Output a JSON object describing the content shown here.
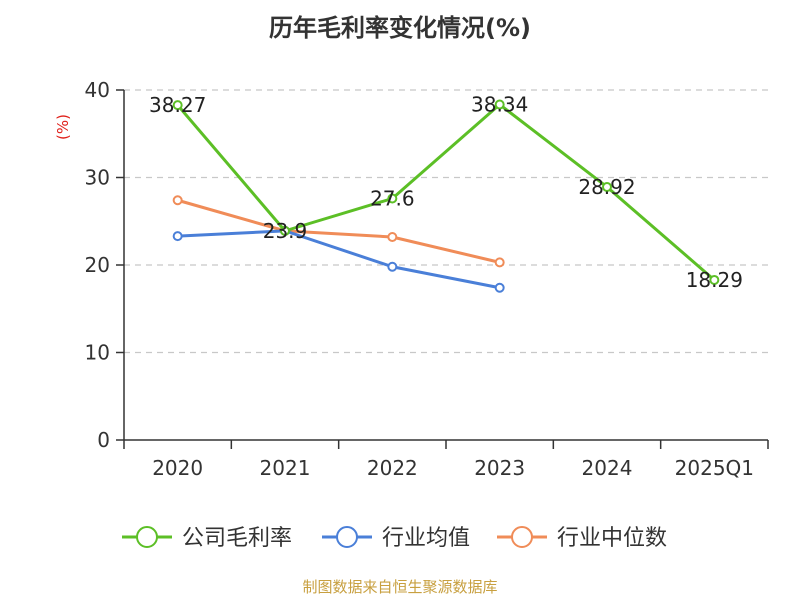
{
  "chart_data": {
    "type": "line",
    "title": "历年毛利率变化情况(%)",
    "ylabel": "(%)",
    "xlabel": "",
    "categories": [
      "2020",
      "2021",
      "2022",
      "2023",
      "2024",
      "2025Q1"
    ],
    "ylim": [
      0,
      40
    ],
    "yticks": [
      0,
      10,
      20,
      30,
      40
    ],
    "grid": true,
    "legend_position": "bottom",
    "series": [
      {
        "name": "公司毛利率",
        "color": "#5cbf26",
        "values": [
          38.27,
          23.9,
          27.6,
          38.34,
          28.92,
          18.29
        ],
        "labels": [
          "38.27",
          "23.9",
          "27.6",
          "38.34",
          "28.92",
          "18.29"
        ]
      },
      {
        "name": "行业均值",
        "color": "#4a7fd8",
        "values": [
          23.3,
          23.9,
          19.8,
          17.4,
          null,
          null
        ]
      },
      {
        "name": "行业中位数",
        "color": "#f08c58",
        "values": [
          27.4,
          23.9,
          23.2,
          20.3,
          null,
          null
        ]
      }
    ]
  },
  "source": "制图数据来自恒生聚源数据库"
}
